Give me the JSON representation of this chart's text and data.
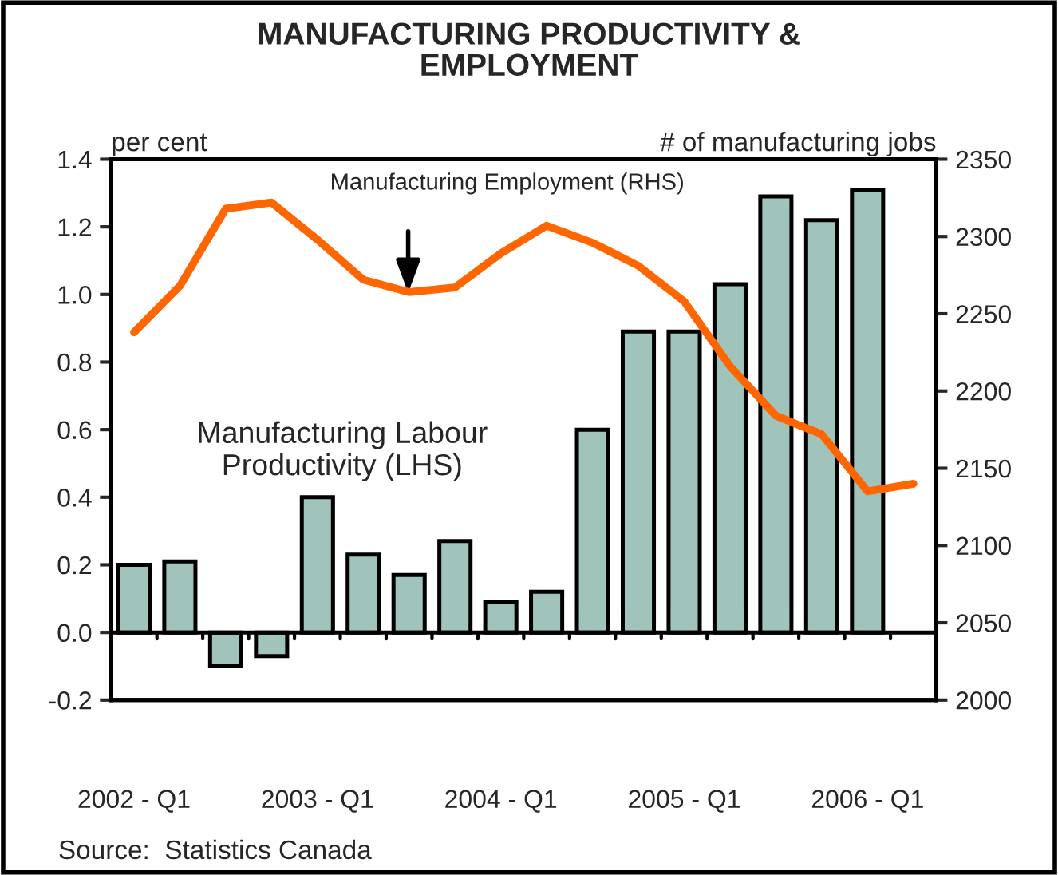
{
  "chart_data": {
    "type": "bar",
    "title": "MANUFACTURING PRODUCTIVITY &\nEMPLOYMENT",
    "ylabel": "per cent",
    "y2label": "# of manufacturing jobs",
    "categories": [
      "2002 - Q1",
      null,
      null,
      null,
      "2003 - Q1",
      null,
      null,
      null,
      "2004 - Q1",
      null,
      null,
      null,
      "2005 - Q1",
      null,
      null,
      null,
      "2006 - Q1",
      null
    ],
    "series": [
      {
        "color": "#a0c4bc",
        "values": [
          0.2,
          0.21,
          -0.1,
          -0.07,
          0.4,
          0.23,
          0.17,
          0.27,
          0.09,
          0.12,
          0.6,
          0.89,
          0.89,
          1.03,
          1.29,
          1.22,
          1.31,
          null
        ]
      },
      {
        "type": "line",
        "axis": "y2",
        "color": "#ff6600",
        "values": [
          2238,
          2268,
          2318,
          2322,
          2298,
          2272,
          2264,
          2267,
          2289,
          2307,
          2296,
          2281,
          2258,
          2216,
          2184,
          2172,
          2135,
          2140
        ]
      }
    ],
    "ylim": [
      -0.2,
      1.4
    ],
    "yticks": [
      -0.2,
      {
        "value": 0,
        "label": "0.0"
      },
      0.2,
      0.4,
      0.6,
      0.8,
      {
        "value": 1,
        "label": "1.0"
      },
      1.2,
      1.4
    ],
    "ref_lines": [
      {
        "axis": "y",
        "value": 0,
        "color": "#000000"
      }
    ],
    "y2lim": [
      2000,
      2350
    ],
    "y2ticks": [
      2000,
      2050,
      2100,
      2150,
      2200,
      2250,
      2300,
      2350
    ],
    "grid": false,
    "legend": false,
    "annotations": [
      "Manufacturing Employment (RHS)",
      "Manufacturing Labour\nProductivity (LHS)",
      "Source:  Statistics Canada"
    ]
  }
}
